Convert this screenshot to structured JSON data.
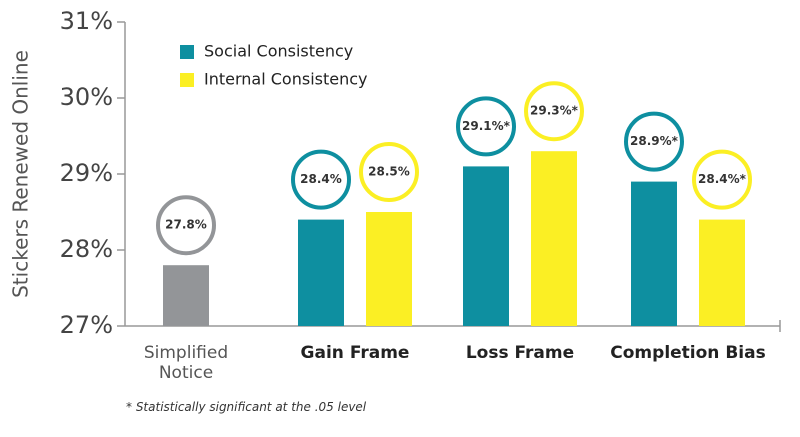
{
  "chart_data": {
    "type": "bar",
    "y_label": "Stickers Renewed Online",
    "categories": [
      "Simplified Notice",
      "Gain Frame",
      "Loss Frame",
      "Completion Bias"
    ],
    "series": [
      {
        "color": "#939598",
        "values": [
          27.8,
          null,
          null,
          null
        ],
        "value_labels": [
          "27.8%",
          null,
          null,
          null
        ]
      },
      {
        "name": "Social Consistency",
        "color": "#0e8fa0",
        "values": [
          null,
          28.4,
          29.1,
          28.9
        ],
        "value_labels": [
          null,
          "28.4%",
          "29.1%*",
          "28.9%*"
        ]
      },
      {
        "name": "Internal Consistency",
        "color": "#fbef24",
        "values": [
          null,
          28.5,
          29.3,
          28.4
        ],
        "value_labels": [
          null,
          "28.5%",
          "29.3%*",
          "28.4%*"
        ]
      }
    ],
    "ylim": [
      27,
      31
    ],
    "yticks": [
      {
        "value": 27,
        "label": "27%"
      },
      {
        "value": 28,
        "label": "28%"
      },
      {
        "value": 29,
        "label": "29%"
      },
      {
        "value": 30,
        "label": "30%"
      },
      {
        "value": 31,
        "label": "31%"
      }
    ],
    "footnote": "* Statistically significant at the .05 level"
  }
}
